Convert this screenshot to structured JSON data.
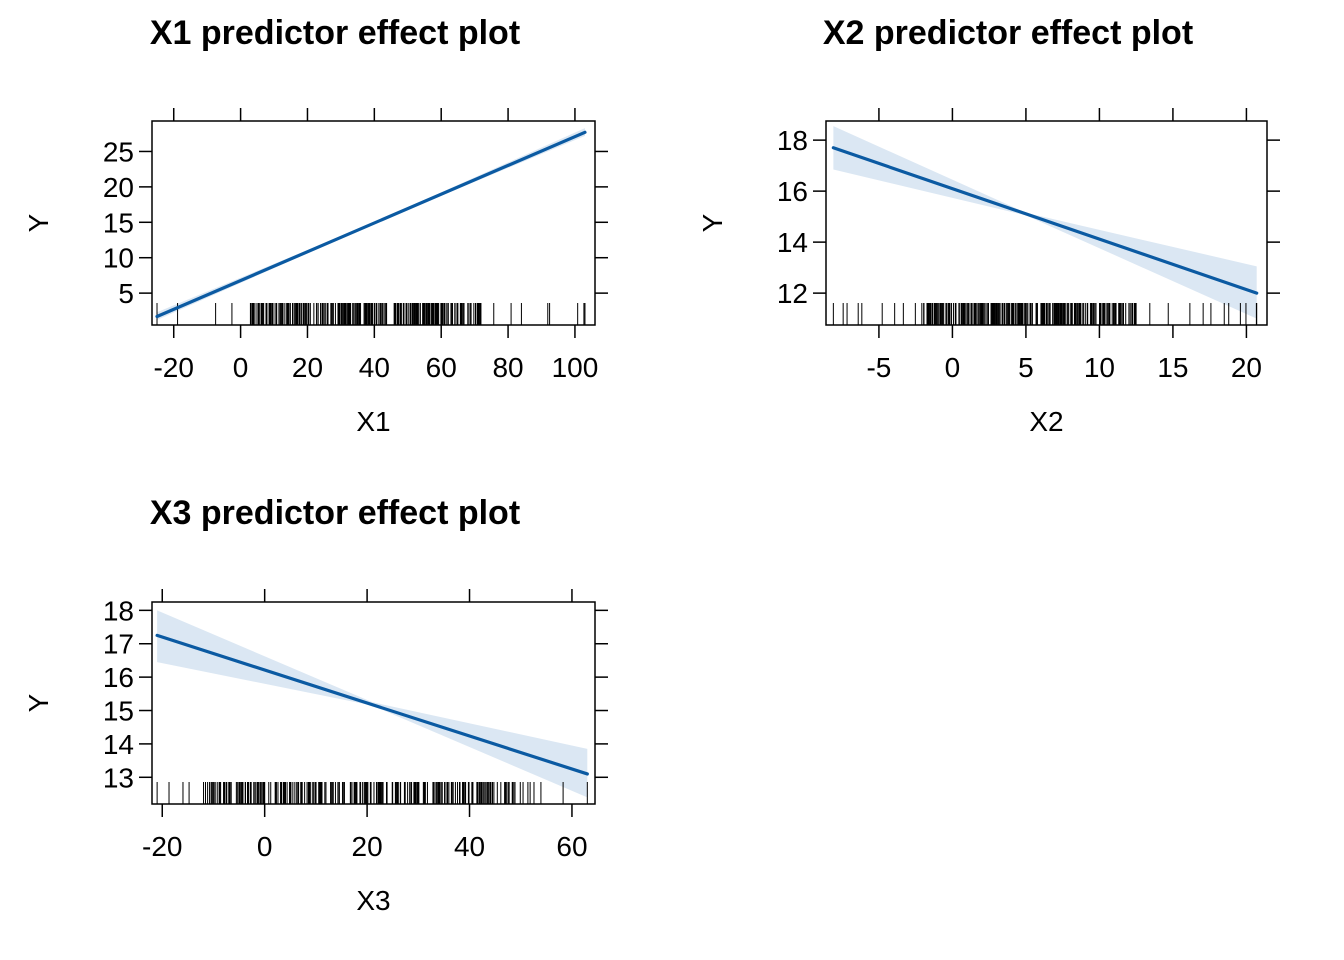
{
  "chart_data": [
    {
      "type": "line",
      "title": "X1 predictor effect plot",
      "xlabel": "X1",
      "ylabel": "Y",
      "xlim": [
        -26.5,
        106
      ],
      "ylim": [
        0.5,
        29.3
      ],
      "xticks": [
        -20,
        0,
        20,
        40,
        60,
        80,
        100
      ],
      "xtick_labels": [
        "-20",
        "0",
        "20",
        "40",
        "60",
        "80",
        "100"
      ],
      "yticks": [
        5,
        10,
        15,
        20,
        25
      ],
      "ytick_labels": [
        "5",
        "10",
        "15",
        "20",
        "25"
      ],
      "fit": {
        "x": [
          -25,
          103
        ],
        "y": [
          1.7,
          27.7
        ]
      },
      "band": {
        "x": [
          -25,
          39,
          103
        ],
        "lower": [
          1.2,
          14.6,
          27.2
        ],
        "upper": [
          2.3,
          14.8,
          28.3
        ]
      },
      "rug": {
        "min": -25,
        "max": 103,
        "dense_from": 3,
        "dense_to": 72,
        "n": 260
      },
      "line_color": "#0b5aa2",
      "band_color": "#dbe7f3"
    },
    {
      "type": "line",
      "title": "X2 predictor effect plot",
      "xlabel": "X2",
      "ylabel": "Y",
      "xlim": [
        -8.6,
        21.4
      ],
      "ylim": [
        10.75,
        18.75
      ],
      "xticks": [
        -5,
        0,
        5,
        10,
        15,
        20
      ],
      "xtick_labels": [
        "-5",
        "0",
        "5",
        "10",
        "15",
        "20"
      ],
      "yticks": [
        12,
        14,
        16,
        18
      ],
      "ytick_labels": [
        "12",
        "14",
        "16",
        "18"
      ],
      "fit": {
        "x": [
          -8.1,
          20.7
        ],
        "y": [
          17.7,
          12.0
        ]
      },
      "band": {
        "x": [
          -8.1,
          5,
          20.7
        ],
        "lower": [
          16.85,
          15.05,
          11.0
        ],
        "upper": [
          18.55,
          15.15,
          13.05
        ]
      },
      "rug": {
        "min": -8.1,
        "max": 20.7,
        "dense_from": -2,
        "dense_to": 12.5,
        "n": 260
      },
      "line_color": "#0b5aa2",
      "band_color": "#dbe7f3"
    },
    {
      "type": "line",
      "title": "X3 predictor effect plot",
      "xlabel": "X3",
      "ylabel": "Y",
      "xlim": [
        -22,
        64.5
      ],
      "ylim": [
        12.2,
        18.25
      ],
      "xticks": [
        -20,
        0,
        20,
        40,
        60
      ],
      "xtick_labels": [
        "-20",
        "0",
        "20",
        "40",
        "60"
      ],
      "yticks": [
        13,
        14,
        15,
        16,
        17,
        18
      ],
      "ytick_labels": [
        "13",
        "14",
        "15",
        "16",
        "17",
        "18"
      ],
      "fit": {
        "x": [
          -21,
          63
        ],
        "y": [
          17.25,
          13.1
        ]
      },
      "band": {
        "x": [
          -21,
          21,
          63
        ],
        "lower": [
          16.45,
          15.15,
          12.4
        ],
        "upper": [
          18.0,
          15.25,
          13.85
        ]
      },
      "rug": {
        "min": -21,
        "max": 63,
        "dense_from": -12,
        "dense_to": 50,
        "n": 260
      },
      "line_color": "#0b5aa2",
      "band_color": "#dbe7f3"
    }
  ]
}
